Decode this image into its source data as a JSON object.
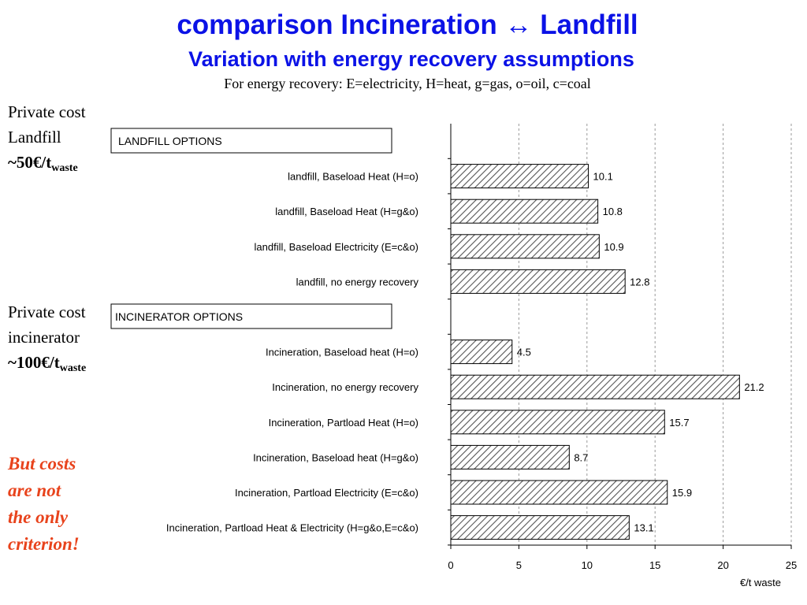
{
  "title": "comparison Incineration ↔ Landfill",
  "subtitle": "Variation with energy recovery assumptions",
  "caption": "For energy recovery: E=electricity, H=heat, g=gas, o=oil, c=coal",
  "side_landfill": {
    "line1": "Private cost",
    "line2": "Landfill",
    "cost": "~50€/t",
    "cost_sub": "waste"
  },
  "side_incinerator": {
    "line1": "Private cost",
    "line2": "incinerator",
    "cost": "~100€/t",
    "cost_sub": "waste"
  },
  "note_lines": [
    "But costs",
    "are not",
    "the only",
    "criterion!"
  ],
  "chart_data": {
    "type": "bar",
    "orientation": "horizontal",
    "groups": [
      {
        "header": "LANDFILL OPTIONS",
        "categories": [
          "landfill, Baseload Heat (H=o)",
          "landfill, Baseload Heat (H=g&o)",
          "landfill, Baseload Electricity (E=c&o)",
          "landfill, no energy recovery"
        ],
        "values": [
          10.1,
          10.8,
          10.9,
          12.8
        ]
      },
      {
        "header": "INCINERATOR OPTIONS",
        "categories": [
          "Incineration, Baseload heat (H=o)",
          "Incineration, no energy recovery",
          "Incineration, Partload Heat (H=o)",
          "Incineration, Baseload heat (H=g&o)",
          "Incineration, Partload Electricity (E=c&o)",
          "Incineration, Partload Heat & Electricity (H=g&o,E=c&o)"
        ],
        "values": [
          4.5,
          21.2,
          15.7,
          8.7,
          15.9,
          13.1
        ]
      }
    ],
    "xlabel": "€/t waste",
    "xlim": [
      0,
      25
    ],
    "xticks": [
      0,
      5,
      10,
      15,
      20,
      25
    ],
    "grid": "vertical dashed",
    "bar_fill": "diagonal hatch",
    "colors": {
      "bar_stroke": "#000000",
      "hatch": "#555555",
      "grid": "#9a9a9a"
    }
  }
}
